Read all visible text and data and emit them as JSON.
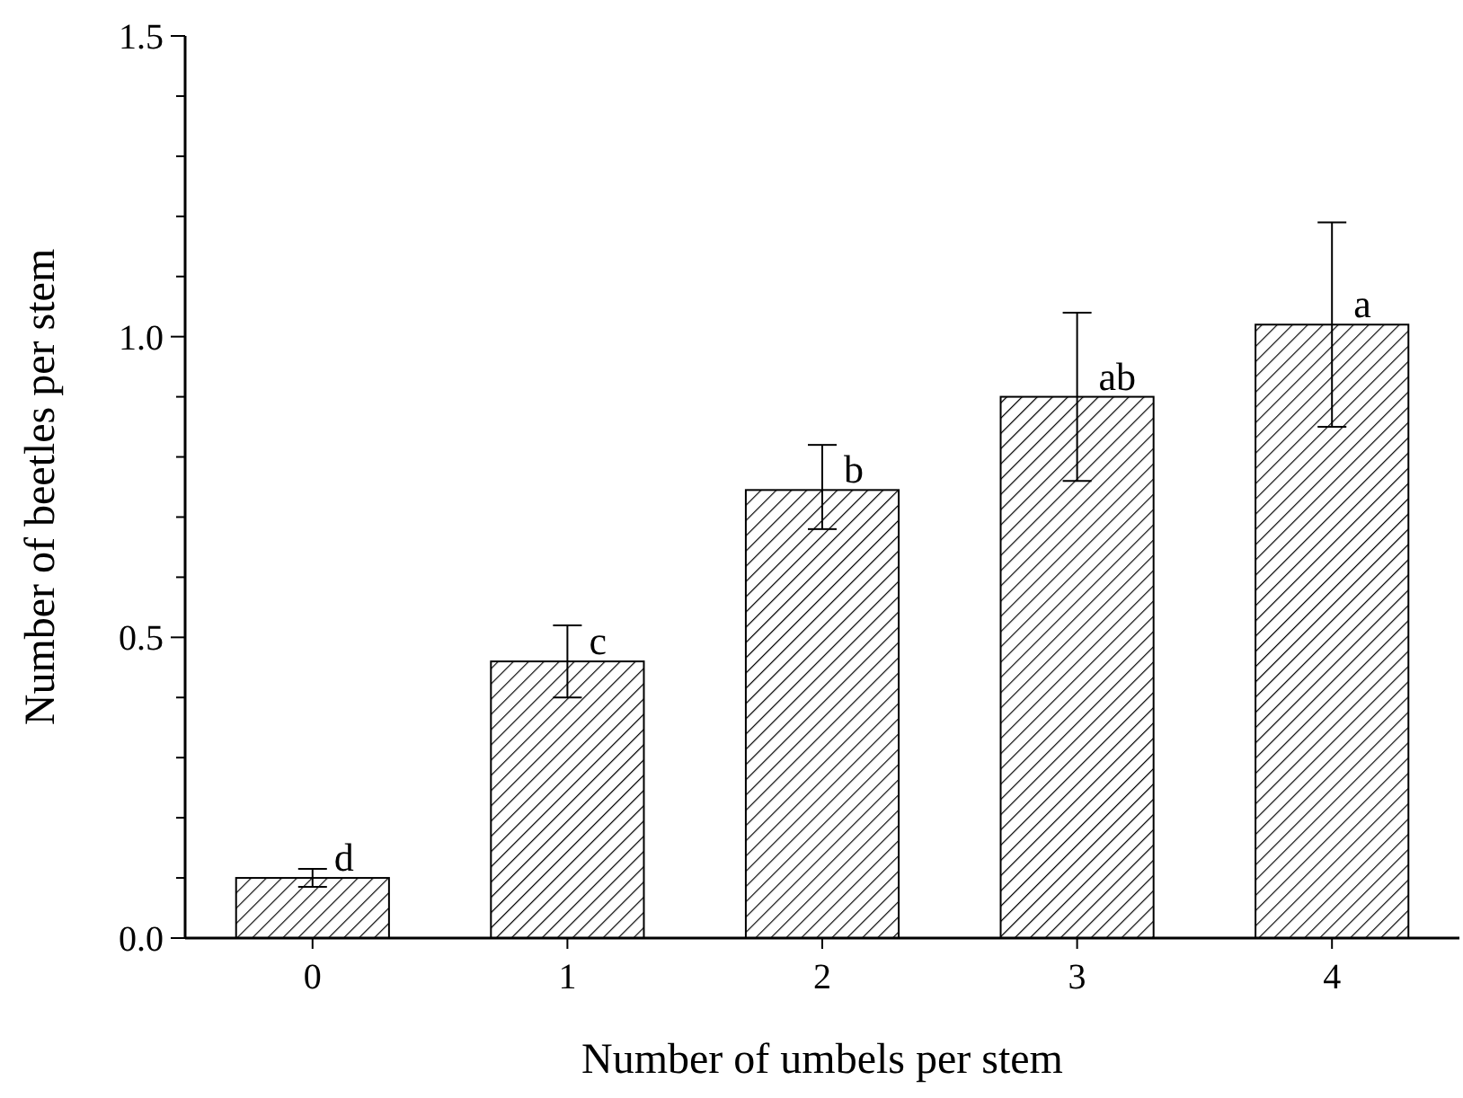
{
  "chart_data": {
    "type": "bar",
    "xlabel": "Number of umbels per stem",
    "ylabel": "Number of beetles per stem",
    "categories": [
      "0",
      "1",
      "2",
      "3",
      "4"
    ],
    "values": [
      0.1,
      0.46,
      0.745,
      0.9,
      1.02
    ],
    "errors": [
      [
        0.085,
        0.115
      ],
      [
        0.4,
        0.52
      ],
      [
        0.68,
        0.82
      ],
      [
        0.76,
        1.04
      ],
      [
        0.85,
        1.19
      ]
    ],
    "color": "#000000",
    "ylim": [
      0,
      1.5
    ],
    "yticks": [
      {
        "value": 0,
        "label": "0.0"
      },
      {
        "value": 0.1,
        "label": null
      },
      {
        "value": 0.2,
        "label": null
      },
      {
        "value": 0.3,
        "label": null
      },
      {
        "value": 0.4,
        "label": null
      },
      {
        "value": 0.5,
        "label": "0.5"
      },
      {
        "value": 0.6,
        "label": null
      },
      {
        "value": 0.7,
        "label": null
      },
      {
        "value": 0.8,
        "label": null
      },
      {
        "value": 0.9,
        "label": null
      },
      {
        "value": 1,
        "label": "1.0"
      },
      {
        "value": 1.1,
        "label": null
      },
      {
        "value": 1.2,
        "label": null
      },
      {
        "value": 1.3,
        "label": null
      },
      {
        "value": 1.4,
        "label": null
      },
      {
        "value": 1.5,
        "label": "1.5"
      }
    ],
    "annotations": [
      {
        "text": "d",
        "x": "0",
        "y": 0.1
      },
      {
        "text": "c",
        "x": "1",
        "y": 0.46
      },
      {
        "text": "b",
        "x": "2",
        "y": 0.745
      },
      {
        "text": "ab",
        "x": "3",
        "y": 0.9
      },
      {
        "text": "a",
        "x": "4",
        "y": 1.02
      }
    ],
    "grid": false
  }
}
